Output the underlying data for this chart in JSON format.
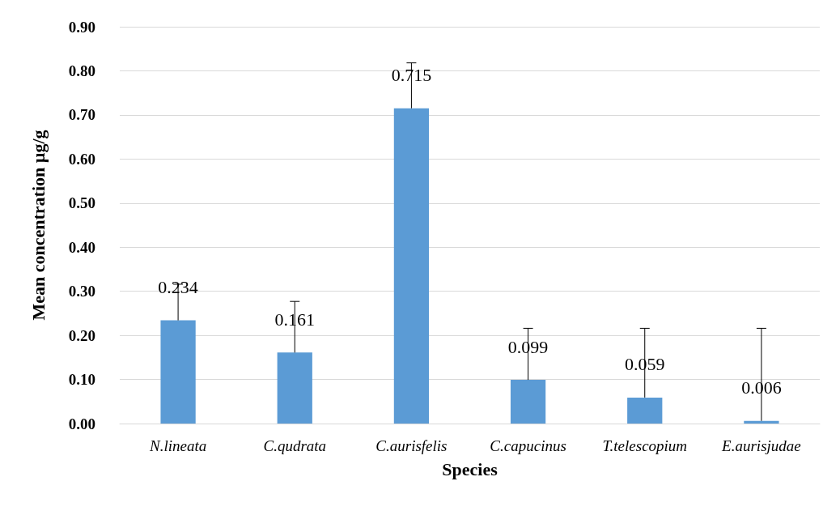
{
  "chart_data": {
    "type": "bar",
    "xlabel": "Species",
    "ylabel": "Mean concentration µg/g",
    "categories": [
      "N.lineata",
      "C.qudrata",
      "C.aurisfelis",
      "C.capucinus",
      "T.telescopium",
      "E.aurisjudae"
    ],
    "values": [
      0.234,
      0.161,
      0.715,
      0.099,
      0.059,
      0.006
    ],
    "errors": [
      [
        0.234,
        0.316
      ],
      [
        0.161,
        0.277
      ],
      [
        0.715,
        0.818
      ],
      [
        0.099,
        0.216
      ],
      [
        0.059,
        0.216
      ],
      [
        0.006,
        0.216
      ]
    ],
    "color": "#5b9bd5",
    "ylim": [
      0,
      0.9
    ],
    "yticks": [
      {
        "value": 0,
        "label": "0.00"
      },
      {
        "value": 0.1,
        "label": "0.10"
      },
      {
        "value": 0.2,
        "label": "0.20"
      },
      {
        "value": 0.3,
        "label": "0.30"
      },
      {
        "value": 0.4,
        "label": "0.40"
      },
      {
        "value": 0.5,
        "label": "0.50"
      },
      {
        "value": 0.6,
        "label": "0.60"
      },
      {
        "value": 0.7,
        "label": "0.70"
      },
      {
        "value": 0.8,
        "label": "0.80"
      },
      {
        "value": 0.9,
        "label": "0.90"
      }
    ],
    "grid": "y",
    "data_labels": true
  }
}
